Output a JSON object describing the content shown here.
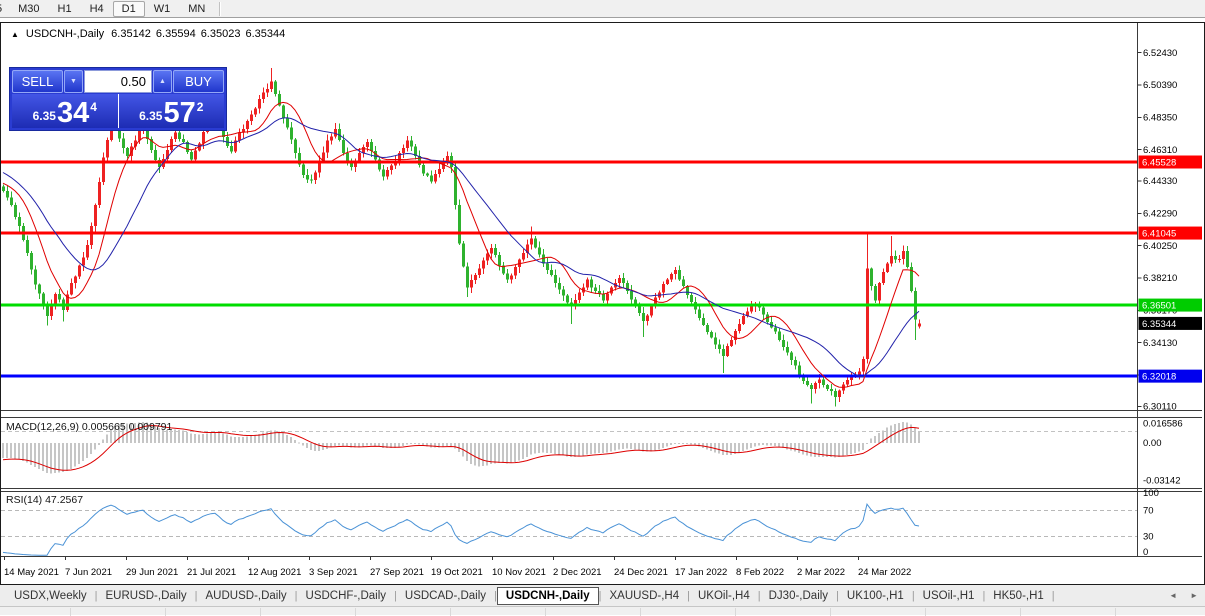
{
  "toolbar": {
    "items": [
      "5",
      "M30",
      "H1",
      "H4",
      "D1",
      "W1",
      "MN"
    ],
    "active": "D1"
  },
  "chart": {
    "header": {
      "collapse_icon": "▲",
      "symbol_title": "USDCNH-,Daily",
      "open": "6.35142",
      "high": "6.35594",
      "low": "6.35023",
      "close": "6.35344"
    }
  },
  "trade_panel": {
    "sell_label": "SELL",
    "buy_label": "BUY",
    "volume": "0.50",
    "spin_down_icon": "▼",
    "spin_up_icon": "▲",
    "sell_base": "6.35",
    "sell_big": "34",
    "sell_sup": "4",
    "buy_base": "6.35",
    "buy_big": "57",
    "buy_sup": "2"
  },
  "panels": {
    "macd_label": "MACD(12,26,9) 0.005665 0.009791",
    "rsi_label": "RSI(14) 47.2567"
  },
  "tabs": {
    "items": [
      {
        "label": "USDX,Weekly",
        "active": false
      },
      {
        "label": "EURUSD-,Daily",
        "active": false
      },
      {
        "label": "AUDUSD-,Daily",
        "active": false
      },
      {
        "label": "USDCHF-,Daily",
        "active": false
      },
      {
        "label": "USDCAD-,Daily",
        "active": false
      },
      {
        "label": "USDCNH-,Daily",
        "active": true
      },
      {
        "label": "XAUUSD-,H4",
        "active": false
      },
      {
        "label": "UKOil-,H4",
        "active": false
      },
      {
        "label": "DJ30-,Daily",
        "active": false
      },
      {
        "label": "UK100-,H1",
        "active": false
      },
      {
        "label": "USOil-,H1",
        "active": false
      },
      {
        "label": "HK50-,H1",
        "active": false
      }
    ],
    "scroll_left": "◄",
    "scroll_right": "►"
  },
  "chart_data": {
    "type": "candlestick",
    "symbol": "USDCNH",
    "timeframe": "Daily",
    "up_color": "#ee2222",
    "down_color": "#2eb22e",
    "ma_fast_color": "#e00000",
    "ma_slow_color": "#2222aa",
    "ma_fast_period": 10,
    "ma_slow_period": 21,
    "ohlc_current": {
      "open": 6.35142,
      "high": 6.35594,
      "low": 6.35023,
      "close": 6.35344
    },
    "y_ticks": [
      6.5243,
      6.5039,
      6.4835,
      6.4631,
      6.4433,
      6.4229,
      6.4025,
      6.3821,
      6.3617,
      6.3413,
      6.3209,
      6.3011
    ],
    "levels": [
      {
        "price": 6.45528,
        "color": "#ff0000",
        "width": 3,
        "badge_bg": "#ff0000",
        "badge_fg": "#ffffff"
      },
      {
        "price": 6.41045,
        "color": "#ff0000",
        "width": 3,
        "badge_bg": "#ff0000",
        "badge_fg": "#ffffff"
      },
      {
        "price": 6.36501,
        "color": "#00dd00",
        "width": 3,
        "badge_bg": "#00cc00",
        "badge_fg": "#ffffff"
      },
      {
        "price": 6.32018,
        "color": "#0000ff",
        "width": 3,
        "badge_bg": "#0000ee",
        "badge_fg": "#ffffff"
      }
    ],
    "current_price_badge": {
      "price": 6.35344,
      "badge_bg": "#000000",
      "badge_fg": "#ffffff"
    },
    "x_labels": [
      "14 May 2021",
      "7 Jun 2021",
      "29 Jun 2021",
      "21 Jul 2021",
      "12 Aug 2021",
      "3 Sep 2021",
      "27 Sep 2021",
      "19 Oct 2021",
      "10 Nov 2021",
      "2 Dec 2021",
      "24 Dec 2021",
      "17 Jan 2022",
      "8 Feb 2022",
      "2 Mar 2022",
      "24 Mar 2022"
    ],
    "candles_count": 230,
    "close_anchors": [
      [
        0,
        6.437
      ],
      [
        2,
        6.428
      ],
      [
        4,
        6.415
      ],
      [
        6,
        6.398
      ],
      [
        8,
        6.378
      ],
      [
        11,
        6.358
      ],
      [
        13,
        6.372
      ],
      [
        15,
        6.362
      ],
      [
        17,
        6.379
      ],
      [
        19,
        6.39
      ],
      [
        21,
        6.403
      ],
      [
        23,
        6.428
      ],
      [
        25,
        6.458
      ],
      [
        27,
        6.48
      ],
      [
        29,
        6.47
      ],
      [
        31,
        6.459
      ],
      [
        33,
        6.469
      ],
      [
        35,
        6.478
      ],
      [
        37,
        6.463
      ],
      [
        39,
        6.452
      ],
      [
        41,
        6.463
      ],
      [
        43,
        6.474
      ],
      [
        45,
        6.468
      ],
      [
        47,
        6.457
      ],
      [
        49,
        6.467
      ],
      [
        51,
        6.479
      ],
      [
        53,
        6.484
      ],
      [
        55,
        6.471
      ],
      [
        57,
        6.462
      ],
      [
        59,
        6.474
      ],
      [
        61,
        6.481
      ],
      [
        63,
        6.489
      ],
      [
        65,
        6.499
      ],
      [
        67,
        6.506
      ],
      [
        69,
        6.491
      ],
      [
        71,
        6.477
      ],
      [
        73,
        6.461
      ],
      [
        75,
        6.447
      ],
      [
        77,
        6.444
      ],
      [
        79,
        6.456
      ],
      [
        81,
        6.469
      ],
      [
        83,
        6.476
      ],
      [
        85,
        6.461
      ],
      [
        87,
        6.452
      ],
      [
        89,
        6.461
      ],
      [
        91,
        6.468
      ],
      [
        93,
        6.457
      ],
      [
        95,
        6.446
      ],
      [
        97,
        6.453
      ],
      [
        99,
        6.461
      ],
      [
        101,
        6.469
      ],
      [
        103,
        6.459
      ],
      [
        105,
        6.448
      ],
      [
        107,
        6.443
      ],
      [
        109,
        6.451
      ],
      [
        111,
        6.459
      ],
      [
        112,
        6.452
      ],
      [
        113,
        6.428
      ],
      [
        114,
        6.404
      ],
      [
        116,
        6.376
      ],
      [
        118,
        6.384
      ],
      [
        120,
        6.393
      ],
      [
        122,
        6.401
      ],
      [
        124,
        6.39
      ],
      [
        126,
        6.381
      ],
      [
        128,
        6.389
      ],
      [
        130,
        6.398
      ],
      [
        132,
        6.407
      ],
      [
        134,
        6.397
      ],
      [
        136,
        6.387
      ],
      [
        138,
        6.379
      ],
      [
        140,
        6.371
      ],
      [
        142,
        6.364
      ],
      [
        144,
        6.373
      ],
      [
        146,
        6.381
      ],
      [
        148,
        6.374
      ],
      [
        150,
        6.368
      ],
      [
        152,
        6.376
      ],
      [
        154,
        6.382
      ],
      [
        156,
        6.374
      ],
      [
        158,
        6.366
      ],
      [
        160,
        6.355
      ],
      [
        162,
        6.364
      ],
      [
        164,
        6.373
      ],
      [
        166,
        6.381
      ],
      [
        168,
        6.387
      ],
      [
        170,
        6.377
      ],
      [
        172,
        6.367
      ],
      [
        174,
        6.357
      ],
      [
        176,
        6.348
      ],
      [
        178,
        6.34
      ],
      [
        180,
        6.333
      ],
      [
        182,
        6.343
      ],
      [
        184,
        6.353
      ],
      [
        186,
        6.361
      ],
      [
        188,
        6.366
      ],
      [
        190,
        6.359
      ],
      [
        192,
        6.351
      ],
      [
        194,
        6.343
      ],
      [
        196,
        6.335
      ],
      [
        198,
        6.327
      ],
      [
        200,
        6.317
      ],
      [
        202,
        6.312
      ],
      [
        204,
        6.318
      ],
      [
        206,
        6.312
      ],
      [
        208,
        6.307
      ],
      [
        210,
        6.315
      ],
      [
        212,
        6.32
      ],
      [
        214,
        6.323
      ],
      [
        215,
        6.331
      ],
      [
        216,
        6.388
      ],
      [
        217,
        6.377
      ],
      [
        218,
        6.368
      ],
      [
        219,
        6.379
      ],
      [
        220,
        6.386
      ],
      [
        222,
        6.396
      ],
      [
        224,
        6.394
      ],
      [
        225,
        6.399
      ],
      [
        226,
        6.389
      ],
      [
        227,
        6.374
      ],
      [
        228,
        6.356
      ],
      [
        229,
        6.35344
      ]
    ],
    "wick_high_overrides": [
      [
        28,
        6.498
      ],
      [
        67,
        6.5146
      ],
      [
        132,
        6.4145
      ],
      [
        216,
        6.4095
      ],
      [
        222,
        6.4085
      ]
    ],
    "wick_low_overrides": [
      [
        11,
        6.352
      ],
      [
        15,
        6.3545
      ],
      [
        116,
        6.37
      ],
      [
        142,
        6.353
      ],
      [
        160,
        6.345
      ],
      [
        180,
        6.322
      ],
      [
        202,
        6.303
      ],
      [
        208,
        6.3011
      ],
      [
        228,
        6.343
      ]
    ],
    "prehistory": {
      "bars": 40,
      "start": 6.541,
      "end": 6.441
    },
    "macd": {
      "params": [
        12,
        26,
        9
      ],
      "value": 0.005665,
      "signal": 0.009791,
      "axis_labels": [
        "0.016586",
        "0.00",
        "-0.03142"
      ],
      "axis_values": [
        0.016586,
        0.0,
        -0.03142
      ],
      "level_dashed": 0.0098,
      "histogram_color": "#c6c6c6",
      "signal_color": "#dd0000"
    },
    "rsi": {
      "period": 14,
      "value": 47.2567,
      "axis_labels": [
        "100",
        "70",
        "30",
        "0"
      ],
      "levels_dashed": [
        70,
        30
      ],
      "line_color": "#4a92d6"
    }
  }
}
